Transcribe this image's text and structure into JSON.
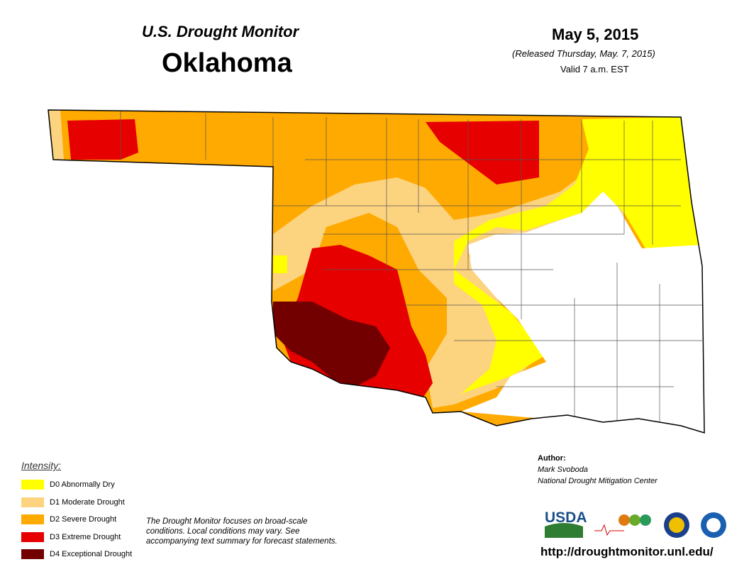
{
  "header": {
    "title": "U.S. Drought Monitor",
    "state": "Oklahoma",
    "date": "May 5, 2015",
    "released": "(Released Thursday, May. 7, 2015)",
    "valid": "Valid 7 a.m. EST"
  },
  "legend": {
    "title": "Intensity:",
    "items": [
      {
        "label": "D0 Abnormally Dry",
        "color": "#ffff00"
      },
      {
        "label": "D1 Moderate Drought",
        "color": "#fcd37f"
      },
      {
        "label": "D2 Severe Drought",
        "color": "#ffaa00"
      },
      {
        "label": "D3 Extreme Drought",
        "color": "#e60000"
      },
      {
        "label": "D4 Exceptional Drought",
        "color": "#730000"
      }
    ]
  },
  "note": "The Drought Monitor focuses on broad-scale conditions. Local conditions may vary. See accompanying text summary for forecast statements.",
  "author": {
    "heading": "Author:",
    "name": "Mark Svoboda",
    "organization": "National Drought Mitigation Center"
  },
  "logos": {
    "usda": "USDA"
  },
  "url": "http://droughtmonitor.unl.edu/"
}
